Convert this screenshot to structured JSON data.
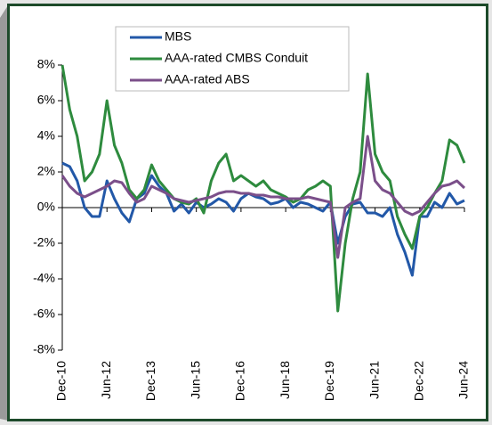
{
  "chart_data": {
    "type": "line",
    "categories": [
      "Dec-10",
      null,
      null,
      null,
      null,
      null,
      "Jun-12",
      null,
      null,
      null,
      null,
      null,
      "Dec-13",
      null,
      null,
      null,
      null,
      null,
      "Jun-15",
      null,
      null,
      null,
      null,
      null,
      "Dec-16",
      null,
      null,
      null,
      null,
      null,
      "Jun-18",
      null,
      null,
      null,
      null,
      null,
      "Dec-19",
      null,
      null,
      null,
      null,
      null,
      "Jun-21",
      null,
      null,
      null,
      null,
      null,
      "Dec-22",
      null,
      null,
      null,
      null,
      null,
      "Jun-24"
    ],
    "series": [
      {
        "name": "MBS",
        "color": "#2258a8",
        "values": [
          2.5,
          2.3,
          1.5,
          0,
          -0.5,
          -0.5,
          1.5,
          0.5,
          -0.3,
          -0.8,
          0.5,
          0.8,
          1.8,
          1.2,
          0.8,
          -0.2,
          0.2,
          -0.3,
          0.3,
          0,
          0.2,
          0.5,
          0.3,
          -0.2,
          0.5,
          0.8,
          0.6,
          0.5,
          0.2,
          0.3,
          0.5,
          0,
          0.3,
          0.2,
          0,
          -0.2,
          0.3,
          -2,
          -0.5,
          0.2,
          0.3,
          -0.3,
          -0.3,
          -0.5,
          0,
          -1.5,
          -2.5,
          -3.8,
          -0.5,
          -0.5,
          0.3,
          0,
          0.8,
          0.2,
          0.4
        ]
      },
      {
        "name": "AAA-rated CMBS Conduit",
        "color": "#2e8b3e",
        "values": [
          8,
          5.5,
          4,
          1.5,
          2,
          3,
          6,
          3.5,
          2.5,
          1,
          0.5,
          1,
          2.4,
          1.5,
          1,
          0.5,
          0.3,
          0.2,
          0.5,
          -0.3,
          1.5,
          2.5,
          3,
          1.5,
          1.8,
          1.5,
          1.2,
          1.5,
          1,
          0.8,
          0.6,
          0.3,
          0.5,
          1,
          1.2,
          1.5,
          1.2,
          -5.8,
          -2,
          0.5,
          2,
          7.5,
          3,
          2,
          1.5,
          -0.5,
          -1.5,
          -2.3,
          -0.5,
          0,
          0.8,
          1.5,
          3.8,
          3.5,
          2.5
        ]
      },
      {
        "name": "AAA-rated ABS",
        "color": "#7b4f8a",
        "values": [
          1.8,
          1.2,
          0.8,
          0.6,
          0.8,
          1,
          1.2,
          1.5,
          1.4,
          0.8,
          0.3,
          0.5,
          1.2,
          1,
          0.8,
          0.5,
          0.4,
          0.3,
          0.4,
          0.5,
          0.6,
          0.8,
          0.9,
          0.9,
          0.8,
          0.8,
          0.7,
          0.7,
          0.6,
          0.6,
          0.5,
          0.5,
          0.5,
          0.6,
          0.5,
          0.4,
          0.3,
          -2.8,
          0,
          0.3,
          0.5,
          4,
          1.5,
          1,
          0.8,
          0.3,
          -0.2,
          -0.4,
          -0.2,
          0.3,
          0.8,
          1.2,
          1.3,
          1.5,
          1.1
        ]
      }
    ],
    "ylim": [
      -8,
      8
    ],
    "yticks": [
      {
        "value": -8,
        "label": "-8%"
      },
      {
        "value": -6,
        "label": "-6%"
      },
      {
        "value": -4,
        "label": "-4%"
      },
      {
        "value": -2,
        "label": "-2%"
      },
      {
        "value": 0,
        "label": "0%"
      },
      {
        "value": 2,
        "label": "2%"
      },
      {
        "value": 4,
        "label": "4%"
      },
      {
        "value": 6,
        "label": "6%"
      },
      {
        "value": 8,
        "label": "8%"
      }
    ],
    "grid": false,
    "legend": "top"
  }
}
